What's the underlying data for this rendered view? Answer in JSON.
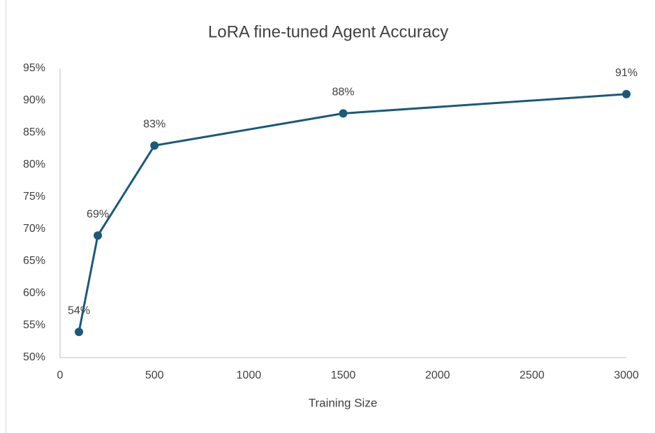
{
  "chart_data": {
    "type": "line",
    "title": "LoRA fine-tuned Agent Accuracy",
    "x_label": "Training Size",
    "x": [
      100,
      200,
      500,
      1500,
      3000
    ],
    "series": [
      {
        "name": "Accuracy",
        "color": "#1b5a7a",
        "values": [
          54,
          69,
          83,
          88,
          91
        ],
        "value_labels": [
          "54%",
          "69%",
          "83%",
          "88%",
          "91%"
        ]
      }
    ],
    "xlim": [
      0,
      3000
    ],
    "xticks": [
      0,
      500,
      1000,
      1500,
      2000,
      2500,
      3000
    ],
    "ylim": [
      50,
      95
    ],
    "yticks": [
      {
        "value": 50,
        "label": "50%"
      },
      {
        "value": 55,
        "label": "55%"
      },
      {
        "value": 60,
        "label": "60%"
      },
      {
        "value": 65,
        "label": "65%"
      },
      {
        "value": 70,
        "label": "70%"
      },
      {
        "value": 75,
        "label": "75%"
      },
      {
        "value": 80,
        "label": "80%"
      },
      {
        "value": 85,
        "label": "85%"
      },
      {
        "value": 90,
        "label": "90%"
      },
      {
        "value": 95,
        "label": "95%"
      }
    ],
    "grid": false
  }
}
